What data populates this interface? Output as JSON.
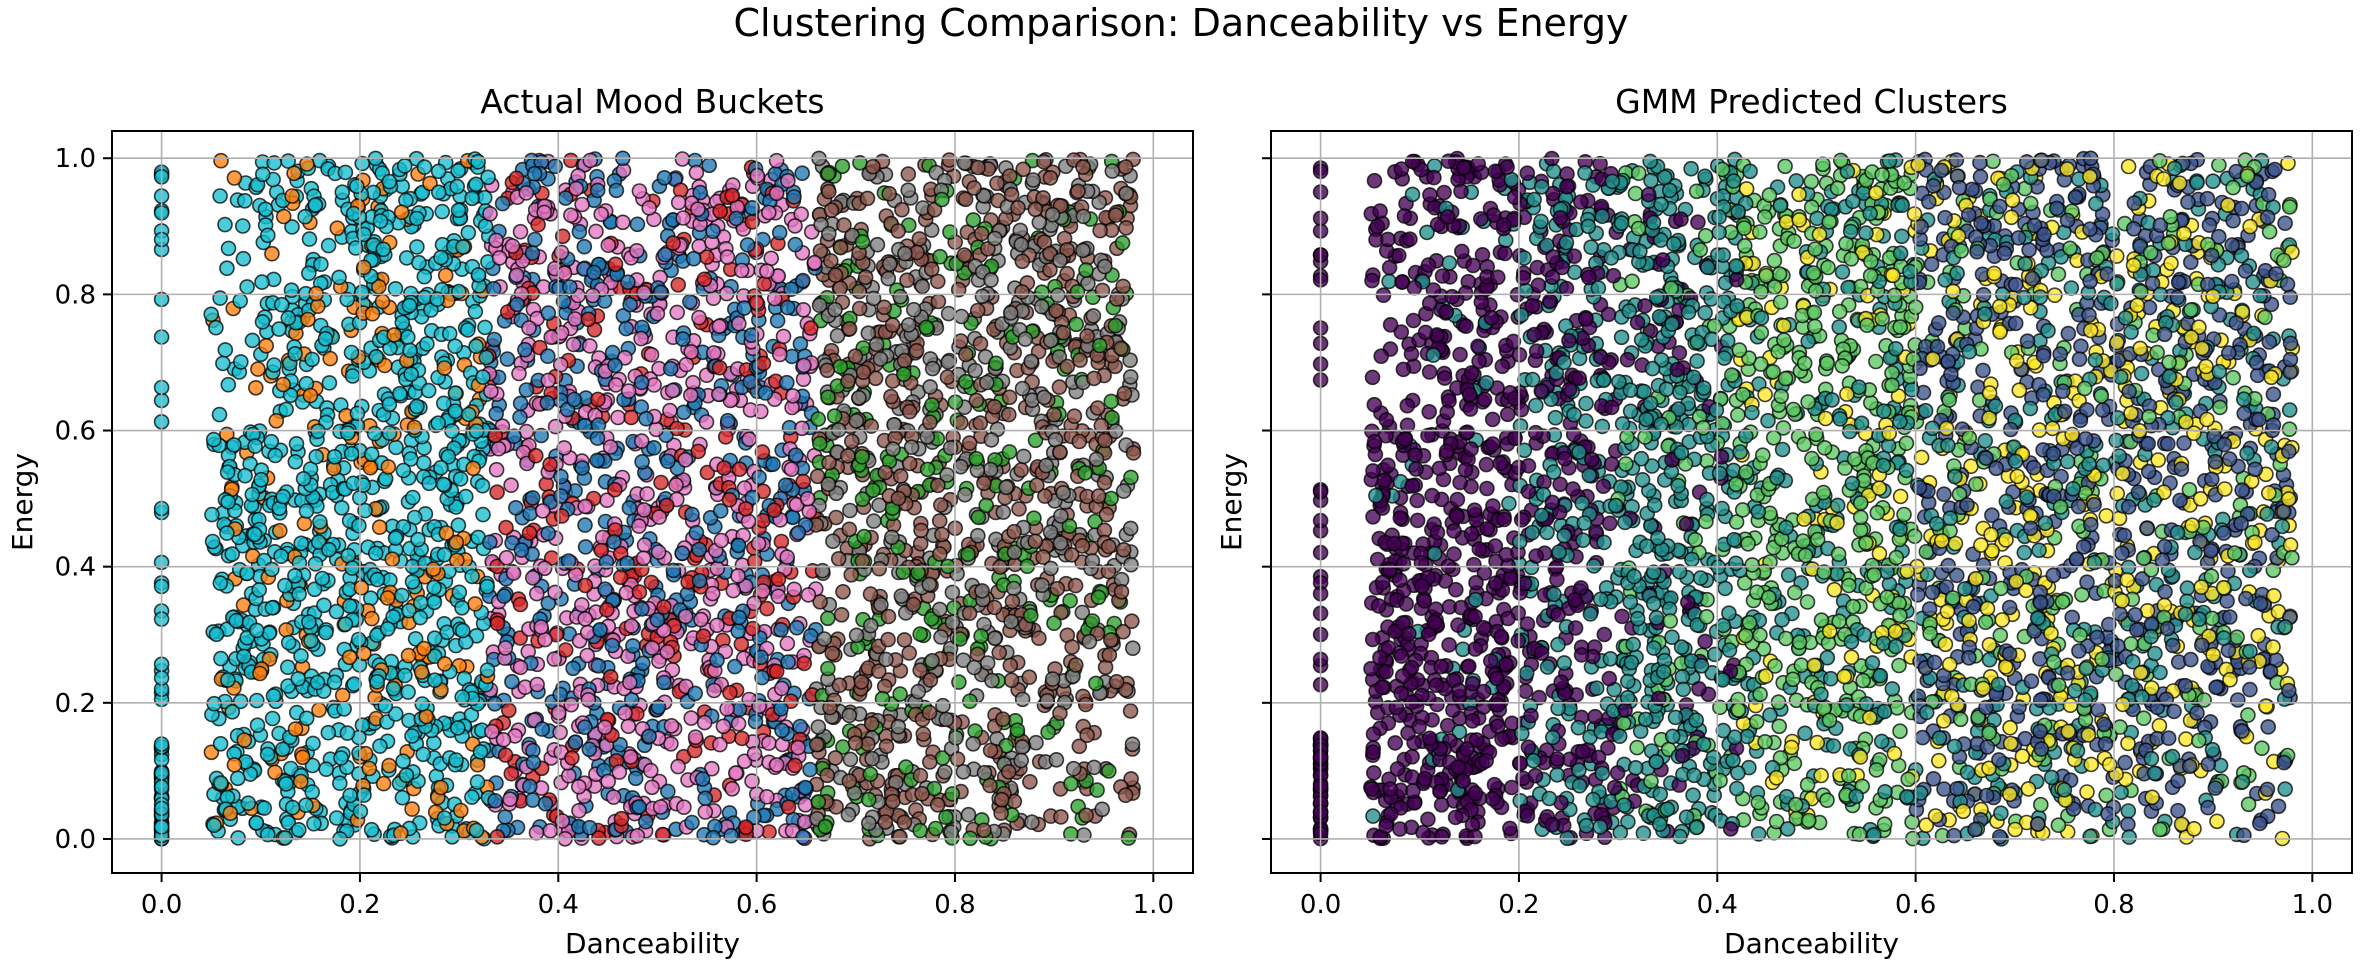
{
  "figure_title": "Clustering Comparison: Danceability vs Energy",
  "chart_data": [
    {
      "type": "scatter",
      "title": "Actual Mood Buckets",
      "xlabel": "Danceability",
      "ylabel": "Energy",
      "xlim": [
        -0.05,
        1.04
      ],
      "ylim": [
        -0.05,
        1.04
      ],
      "xticks": [
        "0.0",
        "0.2",
        "0.4",
        "0.6",
        "0.8",
        "1.0"
      ],
      "yticks": [
        "0.0",
        "0.2",
        "0.4",
        "0.6",
        "0.8",
        "1.0"
      ],
      "grid": true,
      "legend": "none",
      "color_scheme": "tab10 categorical (mood bucket)",
      "colors": {
        "cyan": "#17becf",
        "orange": "#ff7f0e",
        "pink": "#e377c2",
        "blue": "#1f77b4",
        "red": "#d62728",
        "brown": "#8c564b",
        "green": "#2ca02c",
        "gray": "#7f7f7f"
      },
      "marker_edge_color": "#000000",
      "approx_point_count": 20000,
      "regions": [
        {
          "x_range": [
            0.05,
            0.33
          ],
          "y_range": [
            0.0,
            1.0
          ],
          "dominant_colors": [
            "cyan",
            "orange"
          ]
        },
        {
          "x_range": [
            0.33,
            0.66
          ],
          "y_range": [
            0.0,
            1.0
          ],
          "dominant_colors": [
            "pink",
            "blue",
            "red"
          ]
        },
        {
          "x_range": [
            0.66,
            0.98
          ],
          "y_range": [
            0.0,
            1.0
          ],
          "dominant_colors": [
            "brown",
            "gray",
            "green"
          ]
        }
      ],
      "zero_danceability_points": {
        "x": 0.0,
        "y_range": [
          0.0,
          1.0
        ],
        "color": "cyan"
      }
    },
    {
      "type": "scatter",
      "title": "GMM Predicted Clusters",
      "xlabel": "Danceability",
      "ylabel": "Energy",
      "xlim": [
        -0.05,
        1.04
      ],
      "ylim": [
        -0.05,
        1.04
      ],
      "xticks": [
        "0.0",
        "0.2",
        "0.4",
        "0.6",
        "0.8",
        "1.0"
      ],
      "yticks": [
        "0.0",
        "0.2",
        "0.4",
        "0.6",
        "0.8",
        "1.0"
      ],
      "grid": true,
      "legend": "none",
      "color_scheme": "viridis (cluster index)",
      "colors": {
        "purple": "#440154",
        "indigo": "#3b528b",
        "teal": "#21908d",
        "green": "#5dc863",
        "yellow": "#fde725"
      },
      "marker_edge_color": "#000000",
      "approx_point_count": 20000,
      "regions": [
        {
          "x_range": [
            0.05,
            0.3
          ],
          "y_range": [
            0.0,
            1.0
          ],
          "dominant_colors": [
            "purple"
          ]
        },
        {
          "x_range": [
            0.2,
            0.45
          ],
          "y_range": [
            0.0,
            1.0
          ],
          "dominant_colors": [
            "teal"
          ]
        },
        {
          "x_range": [
            0.4,
            0.62
          ],
          "y_range": [
            0.0,
            1.0
          ],
          "dominant_colors": [
            "green",
            "teal"
          ]
        },
        {
          "x_range": [
            0.6,
            0.98
          ],
          "y_range": [
            0.0,
            1.0
          ],
          "dominant_colors": [
            "indigo",
            "yellow",
            "teal"
          ]
        }
      ],
      "zero_danceability_points": {
        "x": 0.0,
        "y_range": [
          0.0,
          1.0
        ],
        "color": "purple"
      }
    }
  ]
}
